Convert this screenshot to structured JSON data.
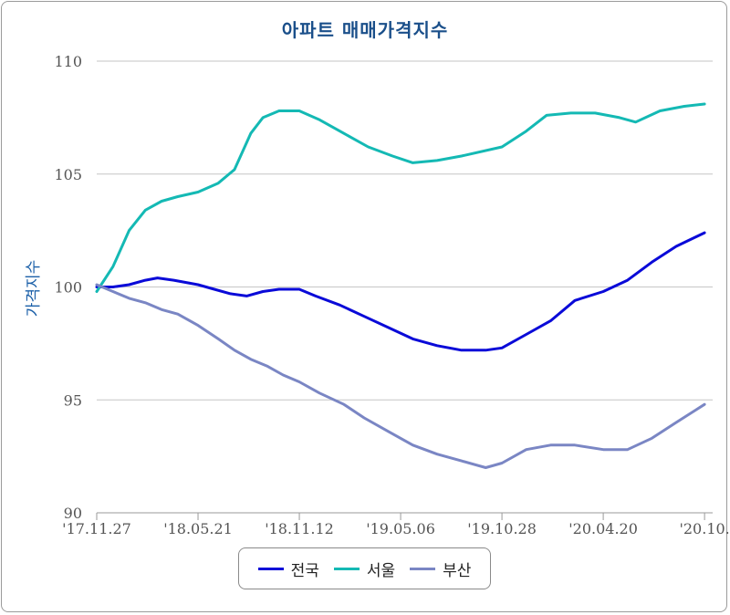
{
  "chart_data": {
    "type": "line",
    "title": "아파트 매매가격지수",
    "xlabel": "",
    "ylabel": "가격지수",
    "ylim": [
      90,
      110
    ],
    "yticks": [
      "90",
      "95",
      "100",
      "105",
      "110"
    ],
    "x_dates": [
      "2017-11-27",
      "2020-10-26"
    ],
    "xticks": [
      {
        "label": "'17.11.27",
        "date": "2017-11-27"
      },
      {
        "label": "'18.05.21",
        "date": "2018-05-21"
      },
      {
        "label": "'18.11.12",
        "date": "2018-11-12"
      },
      {
        "label": "'19.05.06",
        "date": "2019-05-06"
      },
      {
        "label": "'19.10.28",
        "date": "2019-10-28"
      },
      {
        "label": "'20.04.20",
        "date": "2020-04-20"
      },
      {
        "label": "'20.10.",
        "date": "2020-10-12"
      }
    ],
    "grid": true,
    "legend": "bottom-center",
    "series": [
      {
        "name": "전국",
        "color": "#0a0ad8",
        "points": [
          [
            "2017-11-27",
            100.0
          ],
          [
            "2017-12-25",
            100.0
          ],
          [
            "2018-01-22",
            100.1
          ],
          [
            "2018-02-19",
            100.3
          ],
          [
            "2018-03-12",
            100.4
          ],
          [
            "2018-04-09",
            100.3
          ],
          [
            "2018-05-21",
            100.1
          ],
          [
            "2018-06-18",
            99.9
          ],
          [
            "2018-07-16",
            99.7
          ],
          [
            "2018-08-13",
            99.6
          ],
          [
            "2018-09-10",
            99.8
          ],
          [
            "2018-10-08",
            99.9
          ],
          [
            "2018-11-12",
            99.9
          ],
          [
            "2018-12-10",
            99.6
          ],
          [
            "2019-01-21",
            99.2
          ],
          [
            "2019-03-04",
            98.7
          ],
          [
            "2019-04-15",
            98.2
          ],
          [
            "2019-05-27",
            97.7
          ],
          [
            "2019-07-08",
            97.4
          ],
          [
            "2019-08-19",
            97.2
          ],
          [
            "2019-09-30",
            97.2
          ],
          [
            "2019-10-28",
            97.3
          ],
          [
            "2019-12-09",
            97.9
          ],
          [
            "2020-01-20",
            98.5
          ],
          [
            "2020-03-02",
            99.4
          ],
          [
            "2020-04-20",
            99.8
          ],
          [
            "2020-06-01",
            100.3
          ],
          [
            "2020-07-13",
            101.1
          ],
          [
            "2020-08-24",
            101.8
          ],
          [
            "2020-10-12",
            102.4
          ]
        ]
      },
      {
        "name": "서울",
        "color": "#14b9b4",
        "points": [
          [
            "2017-11-27",
            99.8
          ],
          [
            "2017-12-25",
            100.9
          ],
          [
            "2018-01-22",
            102.5
          ],
          [
            "2018-02-19",
            103.4
          ],
          [
            "2018-03-19",
            103.8
          ],
          [
            "2018-04-16",
            104.0
          ],
          [
            "2018-05-21",
            104.2
          ],
          [
            "2018-06-25",
            104.6
          ],
          [
            "2018-07-23",
            105.2
          ],
          [
            "2018-08-20",
            106.8
          ],
          [
            "2018-09-10",
            107.5
          ],
          [
            "2018-10-08",
            107.8
          ],
          [
            "2018-11-12",
            107.8
          ],
          [
            "2018-12-17",
            107.4
          ],
          [
            "2019-01-28",
            106.8
          ],
          [
            "2019-03-11",
            106.2
          ],
          [
            "2019-04-22",
            105.8
          ],
          [
            "2019-05-27",
            105.5
          ],
          [
            "2019-07-08",
            105.6
          ],
          [
            "2019-08-19",
            105.8
          ],
          [
            "2019-10-28",
            106.2
          ],
          [
            "2019-12-09",
            106.9
          ],
          [
            "2020-01-13",
            107.6
          ],
          [
            "2020-02-24",
            107.7
          ],
          [
            "2020-04-06",
            107.7
          ],
          [
            "2020-05-18",
            107.5
          ],
          [
            "2020-06-15",
            107.3
          ],
          [
            "2020-07-27",
            107.8
          ],
          [
            "2020-09-07",
            108.0
          ],
          [
            "2020-10-12",
            108.1
          ]
        ]
      },
      {
        "name": "부산",
        "color": "#7a86c4",
        "points": [
          [
            "2017-11-27",
            100.1
          ],
          [
            "2017-12-25",
            99.8
          ],
          [
            "2018-01-22",
            99.5
          ],
          [
            "2018-02-19",
            99.3
          ],
          [
            "2018-03-19",
            99.0
          ],
          [
            "2018-04-16",
            98.8
          ],
          [
            "2018-05-21",
            98.3
          ],
          [
            "2018-06-25",
            97.7
          ],
          [
            "2018-07-23",
            97.2
          ],
          [
            "2018-08-20",
            96.8
          ],
          [
            "2018-09-17",
            96.5
          ],
          [
            "2018-10-15",
            96.1
          ],
          [
            "2018-11-12",
            95.8
          ],
          [
            "2018-12-17",
            95.3
          ],
          [
            "2019-01-28",
            94.8
          ],
          [
            "2019-03-04",
            94.2
          ],
          [
            "2019-04-15",
            93.6
          ],
          [
            "2019-05-27",
            93.0
          ],
          [
            "2019-07-08",
            92.6
          ],
          [
            "2019-08-19",
            92.3
          ],
          [
            "2019-09-30",
            92.0
          ],
          [
            "2019-10-28",
            92.2
          ],
          [
            "2019-12-09",
            92.8
          ],
          [
            "2020-01-20",
            93.0
          ],
          [
            "2020-03-02",
            93.0
          ],
          [
            "2020-04-20",
            92.8
          ],
          [
            "2020-06-01",
            92.8
          ],
          [
            "2020-07-13",
            93.3
          ],
          [
            "2020-08-24",
            94.0
          ],
          [
            "2020-10-12",
            94.8
          ]
        ]
      }
    ]
  }
}
